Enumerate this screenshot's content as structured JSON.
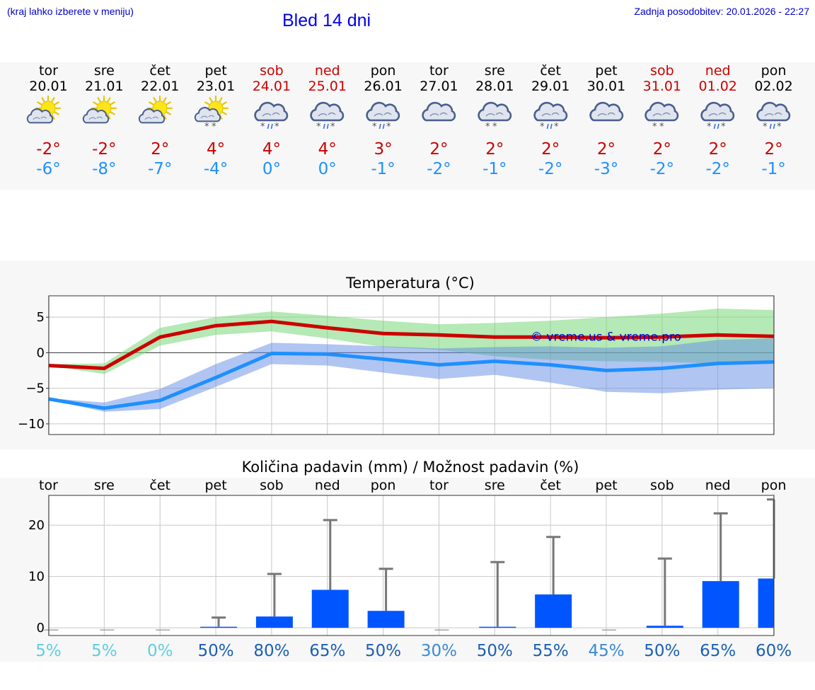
{
  "header": {
    "hint": "(kraj lahko izberete v meniju)",
    "title": "Bled 14 dni",
    "updated": "Zadnja posodobitev: 20.01.2026 - 22:27"
  },
  "colors": {
    "max": "#cc0000",
    "min": "#1e90ff",
    "bar": "#0055ff",
    "link": "#0000cc"
  },
  "days": [
    {
      "wd": "tor",
      "date": "20.01",
      "weekend": false,
      "icon": "sun-cloud-icon",
      "max": "-2°",
      "min": "-6°",
      "pct": "5%"
    },
    {
      "wd": "sre",
      "date": "21.01",
      "weekend": false,
      "icon": "sun-cloud-icon",
      "max": "-2°",
      "min": "-8°",
      "pct": "5%"
    },
    {
      "wd": "čet",
      "date": "22.01",
      "weekend": false,
      "icon": "sun-cloud-icon",
      "max": "2°",
      "min": "-7°",
      "pct": "0%"
    },
    {
      "wd": "pet",
      "date": "23.01",
      "weekend": false,
      "icon": "sun-cloud-snow-icon",
      "max": "4°",
      "min": "-4°",
      "pct": "50%"
    },
    {
      "wd": "sob",
      "date": "24.01",
      "weekend": true,
      "icon": "cloud-sleet-icon",
      "max": "4°",
      "min": "0°",
      "pct": "80%"
    },
    {
      "wd": "ned",
      "date": "25.01",
      "weekend": true,
      "icon": "cloud-sleet-icon",
      "max": "4°",
      "min": "0°",
      "pct": "65%"
    },
    {
      "wd": "pon",
      "date": "26.01",
      "weekend": false,
      "icon": "cloud-sleet-icon",
      "max": "3°",
      "min": "-1°",
      "pct": "50%"
    },
    {
      "wd": "tor",
      "date": "27.01",
      "weekend": false,
      "icon": "cloud-icon",
      "max": "2°",
      "min": "-2°",
      "pct": "30%"
    },
    {
      "wd": "sre",
      "date": "28.01",
      "weekend": false,
      "icon": "cloud-snow-icon",
      "max": "2°",
      "min": "-1°",
      "pct": "50%"
    },
    {
      "wd": "čet",
      "date": "29.01",
      "weekend": false,
      "icon": "cloud-sleet-icon",
      "max": "2°",
      "min": "-2°",
      "pct": "55%"
    },
    {
      "wd": "pet",
      "date": "30.01",
      "weekend": false,
      "icon": "cloud-icon",
      "max": "2°",
      "min": "-3°",
      "pct": "45%"
    },
    {
      "wd": "sob",
      "date": "31.01",
      "weekend": true,
      "icon": "cloud-snow-icon",
      "max": "2°",
      "min": "-2°",
      "pct": "50%"
    },
    {
      "wd": "ned",
      "date": "01.02",
      "weekend": true,
      "icon": "cloud-sleet-icon",
      "max": "2°",
      "min": "-2°",
      "pct": "65%"
    },
    {
      "wd": "pon",
      "date": "02.02",
      "weekend": false,
      "icon": "cloud-sleet-icon",
      "max": "2°",
      "min": "-1°",
      "pct": "60%"
    }
  ],
  "chart_data": [
    {
      "type": "line",
      "title": "Temperatura (°C)",
      "watermark": "© vreme.us & vreme.pro",
      "x": [
        0,
        1,
        2,
        3,
        4,
        5,
        6,
        7,
        8,
        9,
        10,
        11,
        12,
        13
      ],
      "ylim": [
        -11.5,
        8
      ],
      "yticks": [
        5,
        0,
        -5,
        -10
      ],
      "ytick_labels": [
        "5",
        "0",
        "−5",
        "−10"
      ],
      "series": [
        {
          "name": "max",
          "values": [
            -1.8,
            -2.2,
            2.2,
            3.8,
            4.4,
            3.5,
            2.7,
            2.5,
            2.2,
            2.2,
            2.1,
            2.2,
            2.5,
            2.3
          ],
          "band_lo": [
            -1.8,
            -3.0,
            1.0,
            2.5,
            3.0,
            2.0,
            0.8,
            0.4,
            -0.5,
            -1.0,
            -1.2,
            -1.3,
            -1.5,
            -1.5
          ],
          "band_hi": [
            -1.6,
            -1.5,
            3.5,
            5.0,
            5.8,
            5.2,
            4.5,
            4.0,
            4.2,
            4.5,
            5.0,
            5.5,
            6.2,
            6.0
          ]
        },
        {
          "name": "min",
          "values": [
            -6.5,
            -7.8,
            -6.7,
            -3.5,
            -0.1,
            -0.2,
            -0.9,
            -1.7,
            -1.2,
            -1.7,
            -2.5,
            -2.2,
            -1.5,
            -1.3
          ],
          "band_lo": [
            -6.6,
            -8.3,
            -7.9,
            -4.8,
            -1.6,
            -1.8,
            -2.8,
            -3.7,
            -3.1,
            -4.2,
            -5.5,
            -5.7,
            -5.2,
            -5.0
          ],
          "band_hi": [
            -6.4,
            -7.0,
            -5.1,
            -1.6,
            1.4,
            1.2,
            0.9,
            0.6,
            0.8,
            0.9,
            0.7,
            0.9,
            1.8,
            2.0
          ]
        }
      ]
    },
    {
      "type": "bar",
      "title": "Količina padavin (mm) / Možnost padavin (%)",
      "categories": [
        "tor",
        "sre",
        "čet",
        "pet",
        "sob",
        "ned",
        "pon",
        "tor",
        "sre",
        "čet",
        "pet",
        "sob",
        "ned",
        "pon"
      ],
      "ylim": [
        -1.5,
        25.8
      ],
      "yticks": [
        20,
        10,
        0
      ],
      "values": [
        0,
        0,
        0,
        0.2,
        2.2,
        7.4,
        3.3,
        0,
        0.2,
        6.5,
        0,
        0.4,
        9.1,
        9.6
      ],
      "error_hi": [
        0,
        0,
        0,
        2.0,
        10.5,
        21.0,
        11.5,
        0,
        12.8,
        17.7,
        0,
        13.5,
        22.3,
        25.0
      ],
      "chance_pct": [
        "5%",
        "5%",
        "0%",
        "50%",
        "80%",
        "65%",
        "50%",
        "30%",
        "50%",
        "55%",
        "45%",
        "50%",
        "65%",
        "60%"
      ]
    }
  ]
}
